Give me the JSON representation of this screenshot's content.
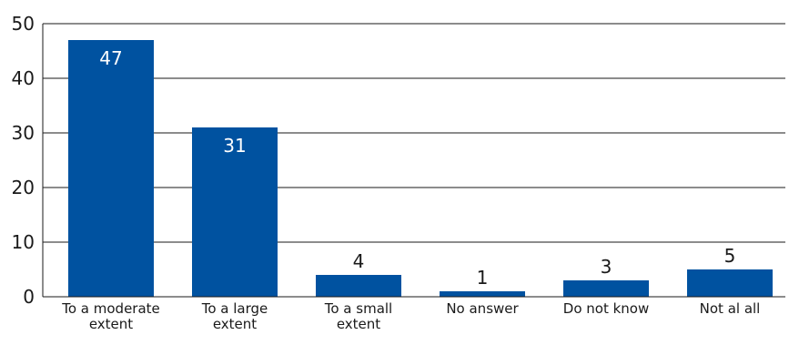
{
  "chart_data": {
    "type": "bar",
    "title": "",
    "xlabel": "",
    "ylabel": "",
    "categories": [
      [
        "To a moderate",
        "extent"
      ],
      [
        "To a large",
        "extent"
      ],
      [
        "To a small",
        "extent"
      ],
      [
        "No answer"
      ],
      [
        "Do not know"
      ],
      [
        "Not al all"
      ]
    ],
    "values": [
      47,
      31,
      4,
      1,
      3,
      5
    ],
    "data_labels": [
      "47",
      "31",
      "4",
      "1",
      "3",
      "5"
    ],
    "ylim": [
      0,
      50
    ],
    "yticks": [
      0,
      10,
      20,
      30,
      40,
      50
    ],
    "grid": true,
    "legend": "none",
    "colors": {
      "bar": "#0052a0",
      "grid": "#1a1a1a",
      "axis": "#1a1a1a",
      "label_inside": "#ffffff",
      "label_outside": "#1a1a1a"
    }
  }
}
